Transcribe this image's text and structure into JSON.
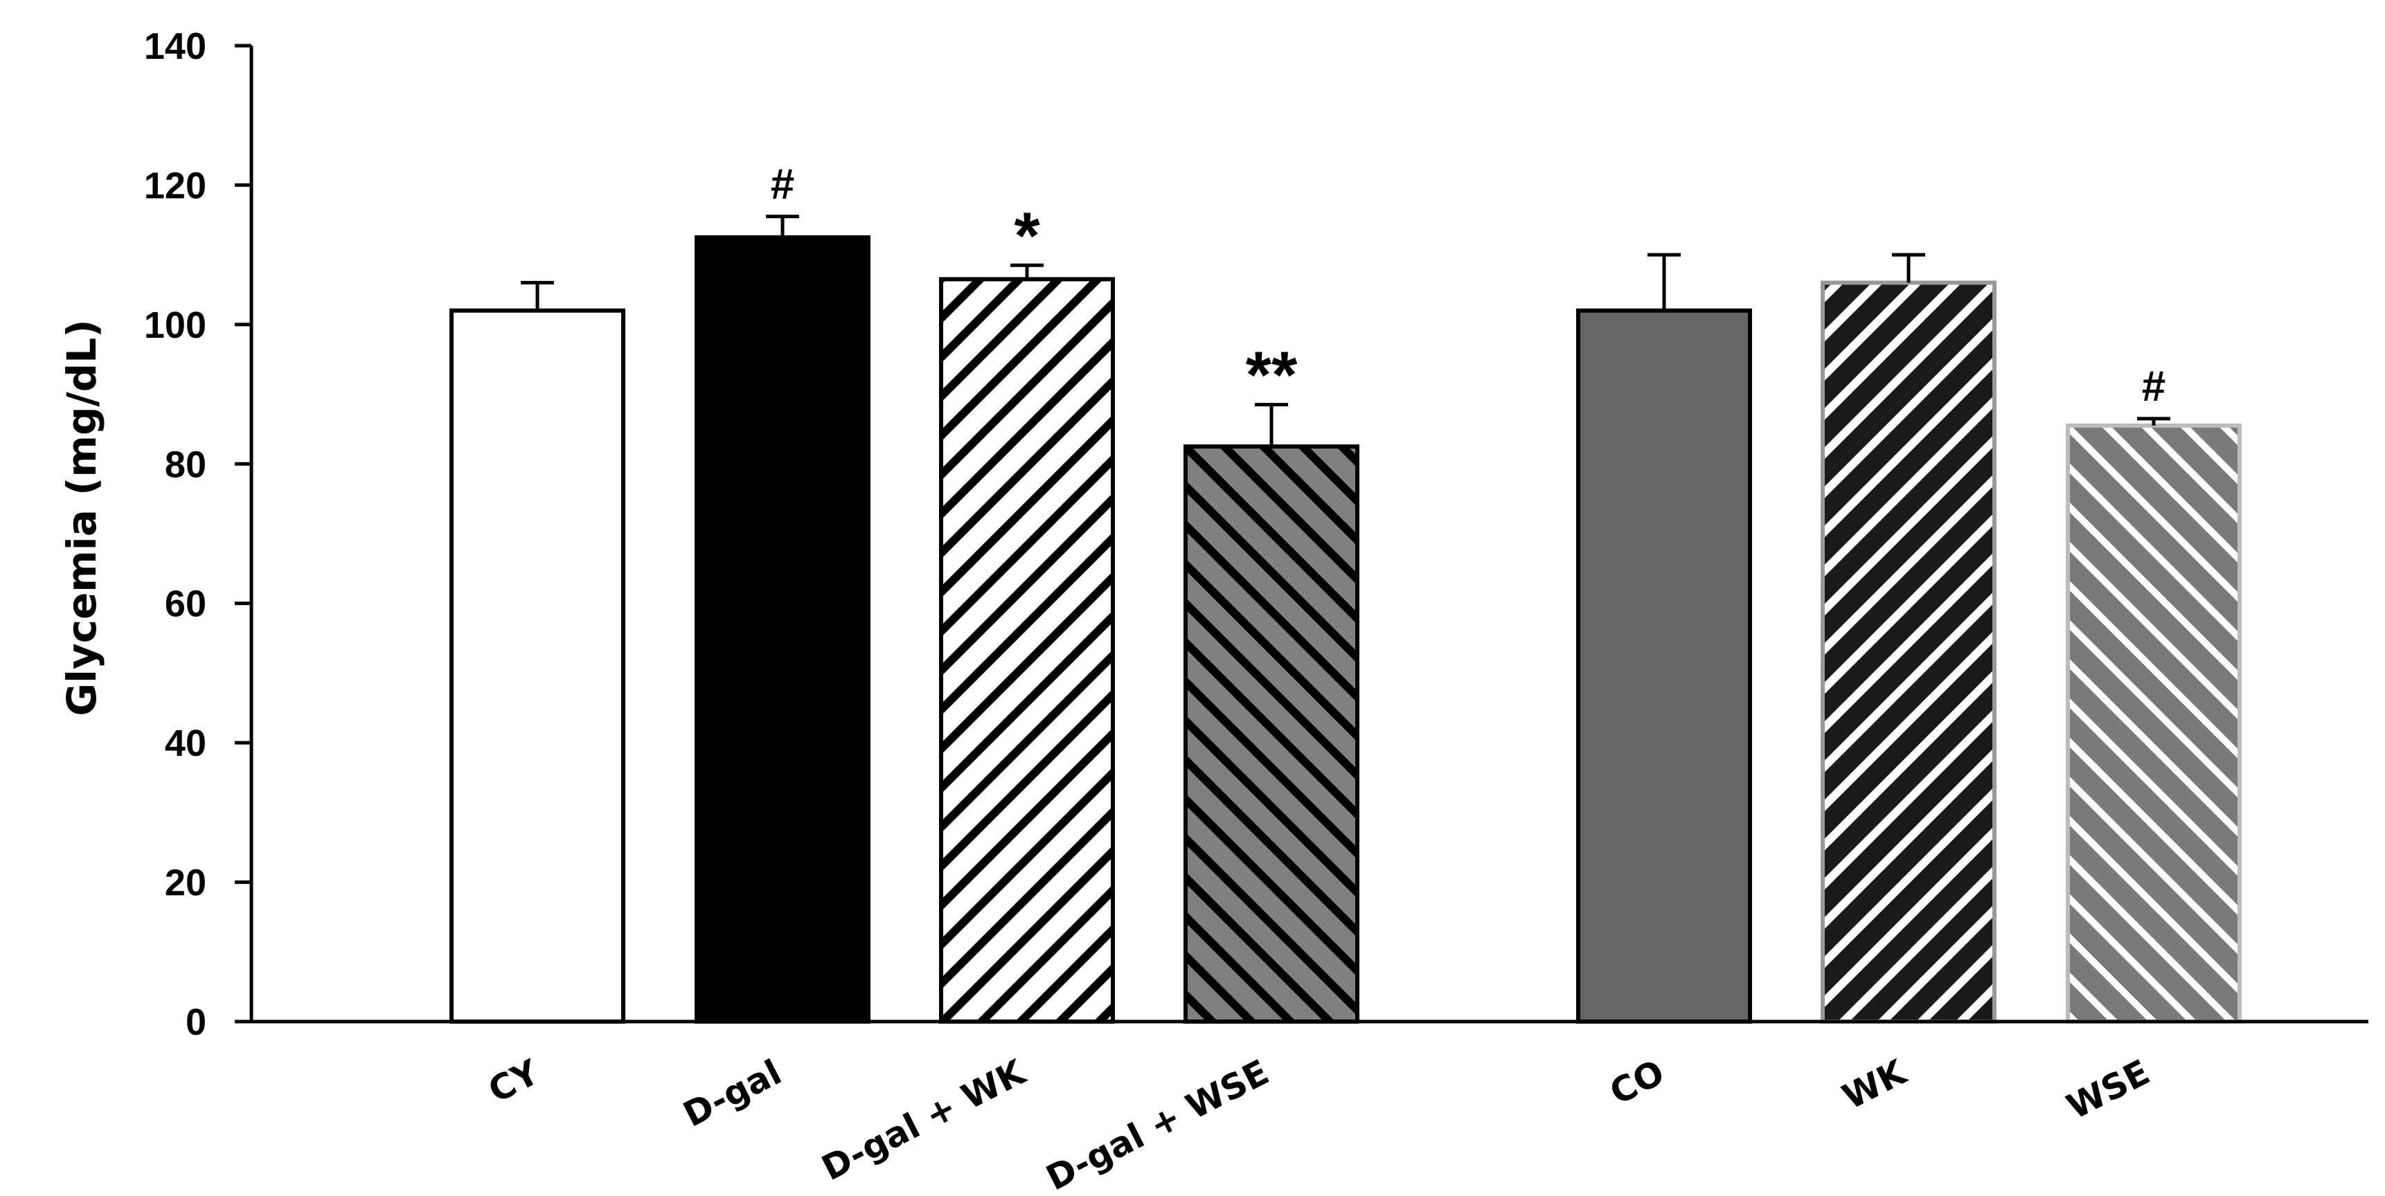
{
  "chart_data": {
    "type": "bar",
    "title": "",
    "xlabel": "",
    "ylabel": "Glycemia (mg/dL)",
    "ylim": [
      0,
      140
    ],
    "yticks": [
      0,
      20,
      40,
      60,
      80,
      100,
      120,
      140
    ],
    "grid": false,
    "legend": "none",
    "categories": [
      "CY",
      "D-gal",
      "D-gal + WK",
      "D-gal + WSE",
      "CO",
      "WK",
      "WSE"
    ],
    "values": [
      102,
      112.5,
      106.5,
      82.5,
      102,
      106,
      85.5
    ],
    "error": [
      4,
      3,
      2,
      6,
      8,
      4,
      1
    ],
    "annotations": [
      "",
      "#",
      "*",
      "**",
      "",
      "",
      "#"
    ],
    "bar_styles": [
      {
        "fill": "#ffffff",
        "pattern": "none",
        "stroke": "#000000"
      },
      {
        "fill": "#000000",
        "pattern": "none",
        "stroke": "#000000"
      },
      {
        "fill": "#ffffff",
        "pattern": "diag-up",
        "line": "#000000",
        "stroke": "#000000"
      },
      {
        "fill": "#808080",
        "pattern": "diag-down",
        "line": "#000000",
        "stroke": "#000000"
      },
      {
        "fill": "#666666",
        "pattern": "none",
        "stroke": "#000000"
      },
      {
        "fill": "#1a1a1a",
        "pattern": "diag-up",
        "line": "#ffffff",
        "stroke": "#999999"
      },
      {
        "fill": "#7a7a7a",
        "pattern": "diag-down",
        "line": "#ffffff",
        "stroke": "#bbbbbb"
      }
    ]
  }
}
